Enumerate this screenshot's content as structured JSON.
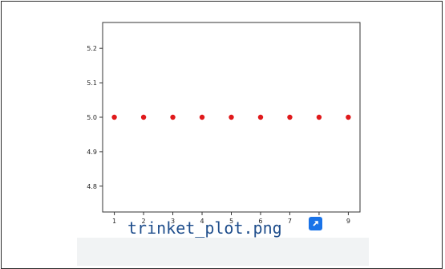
{
  "caption": {
    "file_name": "trinket_plot.png",
    "link_icon": "external-link-icon",
    "link_color": "#1a73e8"
  },
  "chart_data": {
    "type": "scatter",
    "x": [
      1,
      2,
      3,
      4,
      5,
      6,
      7,
      8,
      9
    ],
    "y": [
      5.0,
      5.0,
      5.0,
      5.0,
      5.0,
      5.0,
      5.0,
      5.0,
      5.0
    ],
    "xticks": [
      "1",
      "2",
      "3",
      "4",
      "5",
      "6",
      "7",
      "8",
      "9"
    ],
    "yticks": [
      "4.8",
      "4.9",
      "5.0",
      "5.1",
      "5.2"
    ],
    "xlim": [
      0.6,
      9.4
    ],
    "ylim": [
      4.725,
      5.275
    ],
    "marker_color": "#e0191b",
    "grid": false,
    "title": "",
    "xlabel": "",
    "ylabel": ""
  }
}
